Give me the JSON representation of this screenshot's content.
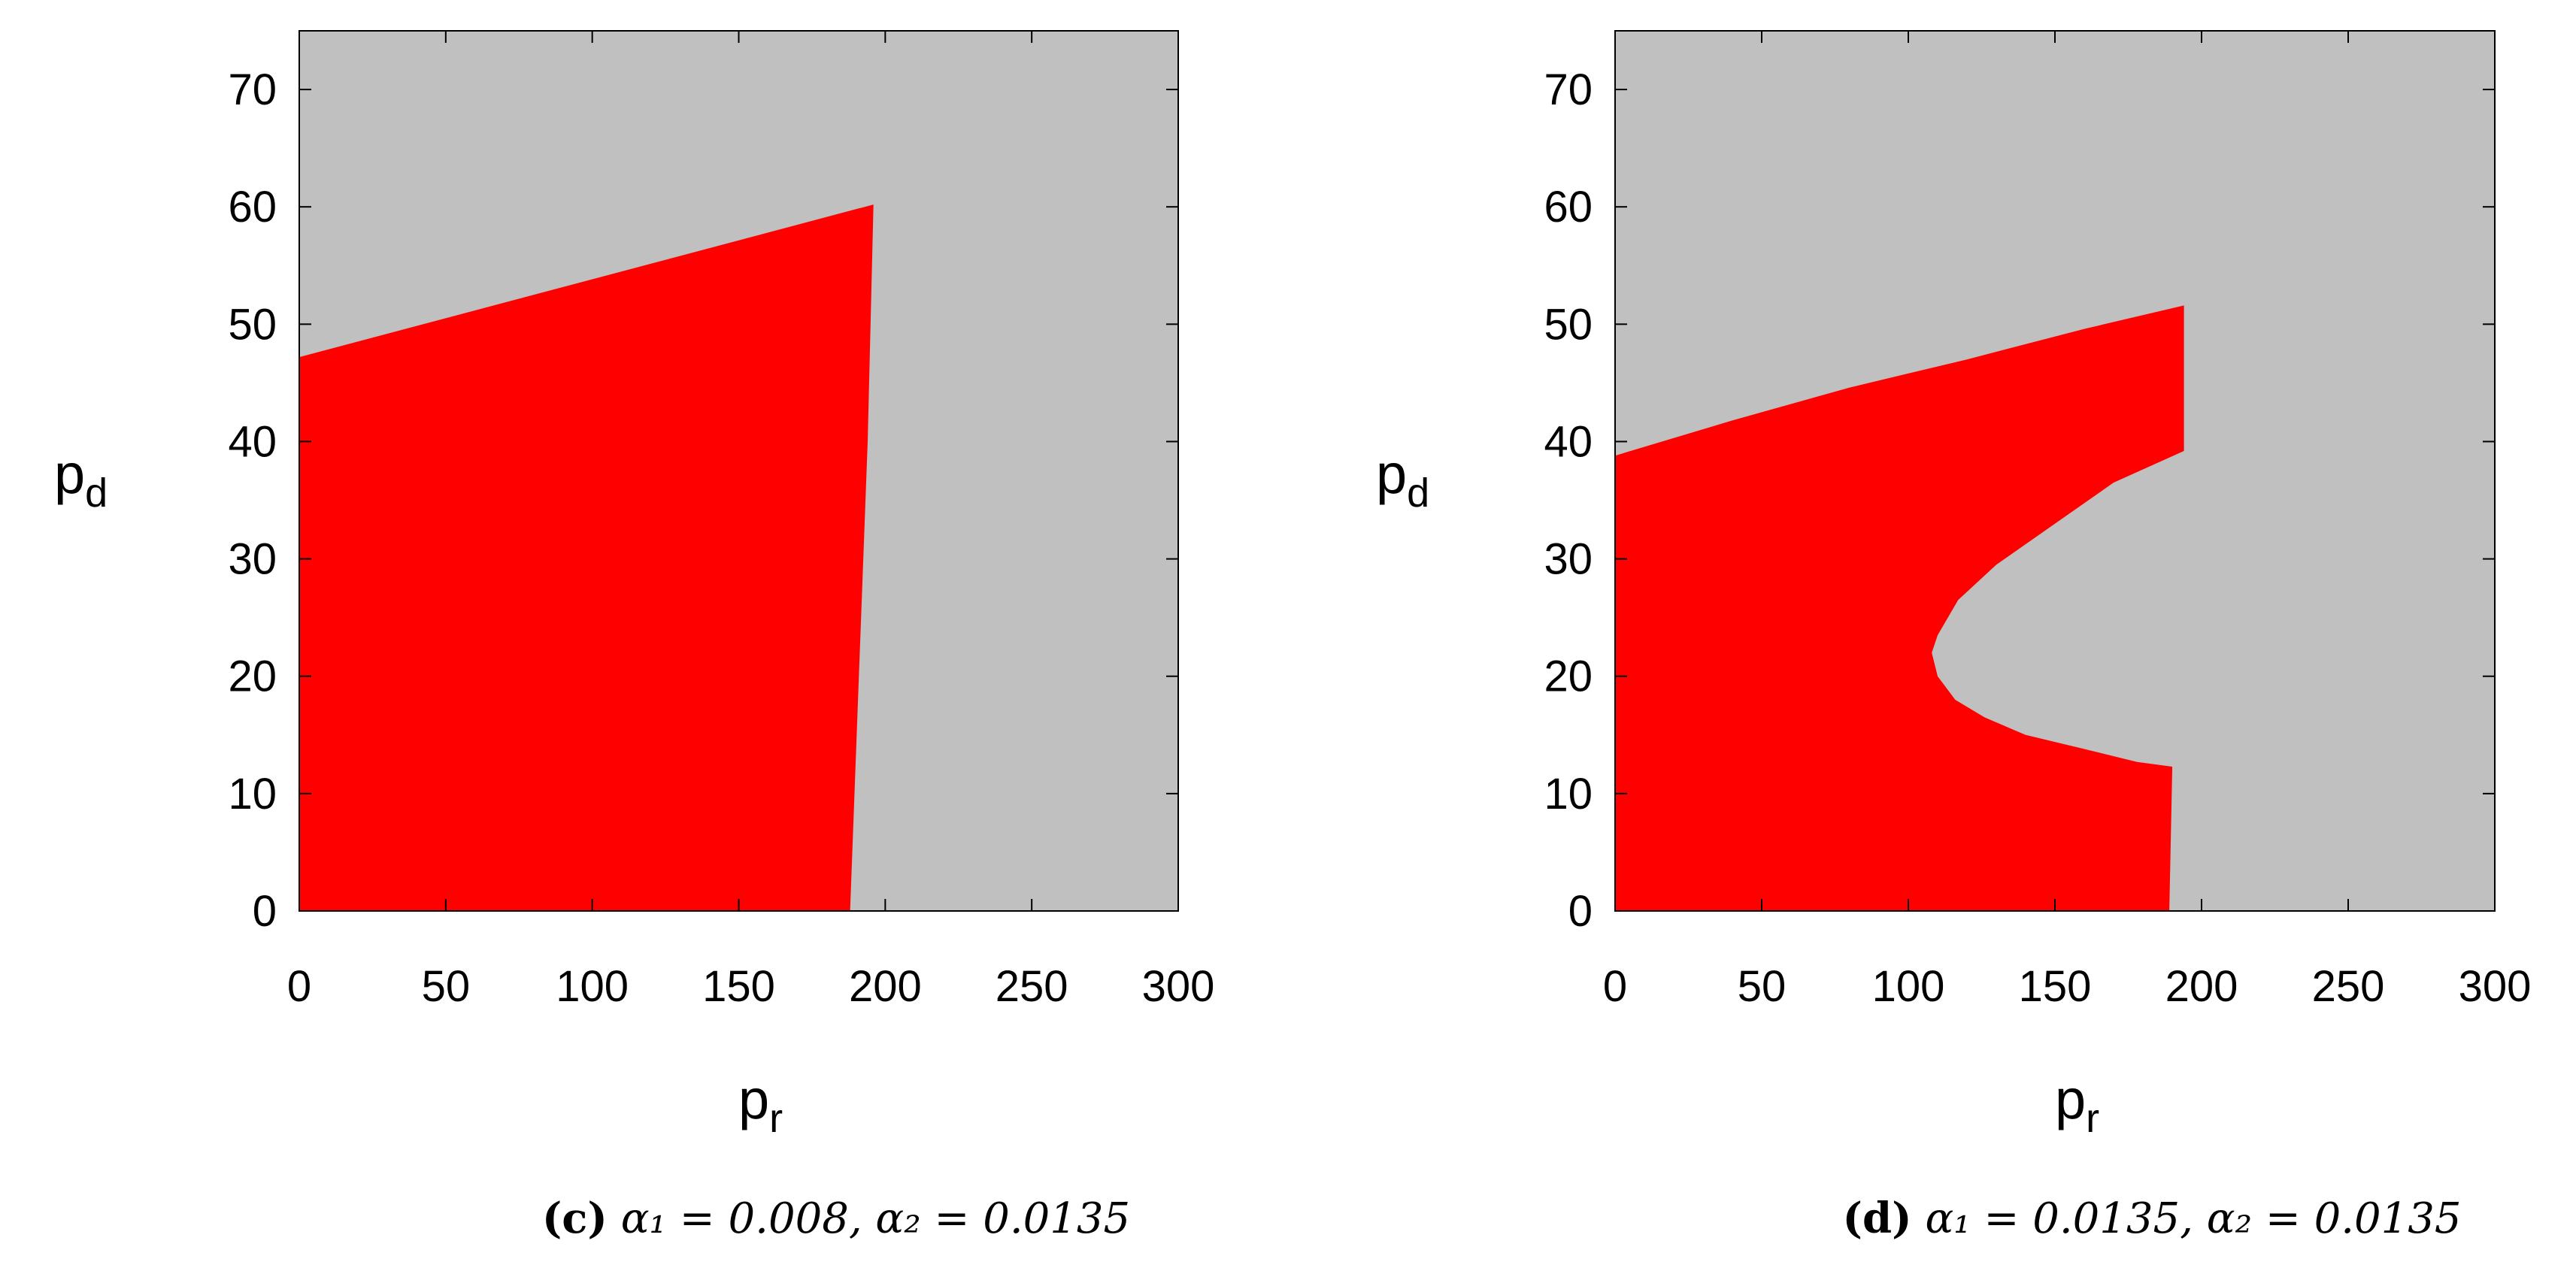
{
  "colors": {
    "region_a": "#ff0000",
    "region_b": "#c0c0c0",
    "axis": "#000000"
  },
  "chart_data": [
    {
      "type": "heatmap",
      "panel": "c",
      "xlabel": "p",
      "xlabel_sub": "r",
      "ylabel": "p",
      "ylabel_sub": "d",
      "xlim": [
        0,
        300
      ],
      "ylim": [
        0,
        75
      ],
      "xticks": [
        0,
        50,
        100,
        150,
        200,
        250,
        300
      ],
      "yticks": [
        0,
        10,
        20,
        30,
        40,
        50,
        60,
        70
      ],
      "grid": false,
      "region_colors": [
        "red",
        "gray"
      ],
      "red_region_boundary": [
        [
          0,
          0
        ],
        [
          0,
          47.2
        ],
        [
          196,
          60.2
        ],
        [
          194,
          40
        ],
        [
          191,
          20
        ],
        [
          188,
          0
        ]
      ],
      "caption": {
        "letter": "(c)",
        "text": "α₁ = 0.008, α₂ = 0.0135"
      }
    },
    {
      "type": "heatmap",
      "panel": "d",
      "xlabel": "p",
      "xlabel_sub": "r",
      "ylabel": "p",
      "ylabel_sub": "d",
      "xlim": [
        0,
        300
      ],
      "ylim": [
        0,
        75
      ],
      "xticks": [
        0,
        50,
        100,
        150,
        200,
        250,
        300
      ],
      "yticks": [
        0,
        10,
        20,
        30,
        40,
        50,
        60,
        70
      ],
      "grid": false,
      "region_colors": [
        "red",
        "gray"
      ],
      "red_region_boundary": [
        [
          0,
          0
        ],
        [
          0,
          38.8
        ],
        [
          40,
          41.8
        ],
        [
          80,
          44.6
        ],
        [
          120,
          47
        ],
        [
          160,
          49.6
        ],
        [
          194,
          51.6
        ],
        [
          194,
          39.2
        ],
        [
          170,
          36.5
        ],
        [
          150,
          33
        ],
        [
          130,
          29.5
        ],
        [
          117,
          26.5
        ],
        [
          110,
          23.5
        ],
        [
          108,
          22
        ],
        [
          110,
          20
        ],
        [
          116,
          18
        ],
        [
          126,
          16.5
        ],
        [
          140,
          15
        ],
        [
          160,
          13.8
        ],
        [
          178,
          12.7
        ],
        [
          190,
          12.3
        ],
        [
          190,
          12
        ],
        [
          189,
          0
        ]
      ],
      "caption": {
        "letter": "(d)",
        "text": "α₁ = 0.0135, α₂ = 0.0135"
      }
    }
  ]
}
